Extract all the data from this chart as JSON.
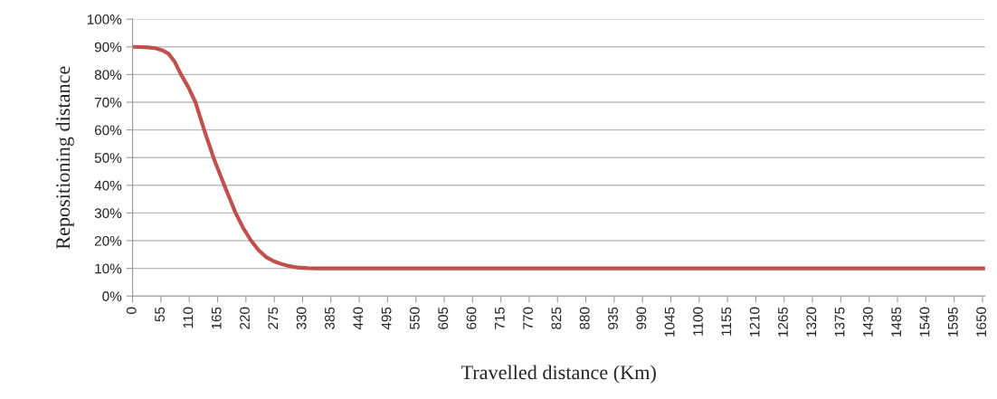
{
  "chart_data": {
    "type": "line",
    "xlabel": "Travelled distance (Km)",
    "ylabel": "Repositioning distance",
    "series": [
      {
        "color": "#c0504d",
        "x": [
          0,
          30,
          44,
          57,
          70,
          82,
          94,
          108,
          122,
          139,
          157,
          178,
          200,
          215,
          230,
          245,
          260,
          275,
          290,
          305,
          320,
          340,
          360,
          1655
        ],
        "values": [
          90,
          89.8,
          89.5,
          88.8,
          87.5,
          84.5,
          80,
          75.5,
          70,
          60,
          50,
          40,
          30,
          24.5,
          20,
          16.5,
          14,
          12.5,
          11.5,
          10.8,
          10.3,
          10.1,
          10,
          10
        ]
      }
    ],
    "xlim": [
      0,
      1655
    ],
    "xticks": [
      0,
      55,
      110,
      165,
      220,
      275,
      330,
      385,
      440,
      495,
      550,
      605,
      660,
      715,
      770,
      825,
      880,
      935,
      990,
      1045,
      1100,
      1155,
      1210,
      1265,
      1320,
      1375,
      1430,
      1485,
      1540,
      1595,
      1650
    ],
    "ylim": [
      0,
      100
    ],
    "yticks": [
      {
        "value": 0,
        "label": "0%"
      },
      {
        "value": 10,
        "label": "10%"
      },
      {
        "value": 20,
        "label": "20%"
      },
      {
        "value": 30,
        "label": "30%"
      },
      {
        "value": 40,
        "label": "40%"
      },
      {
        "value": 50,
        "label": "50%"
      },
      {
        "value": 60,
        "label": "60%"
      },
      {
        "value": 70,
        "label": "70%"
      },
      {
        "value": 80,
        "label": "80%"
      },
      {
        "value": 90,
        "label": "90%"
      },
      {
        "value": 100,
        "label": "100%"
      }
    ],
    "grid": "y",
    "line_style": "solid"
  }
}
